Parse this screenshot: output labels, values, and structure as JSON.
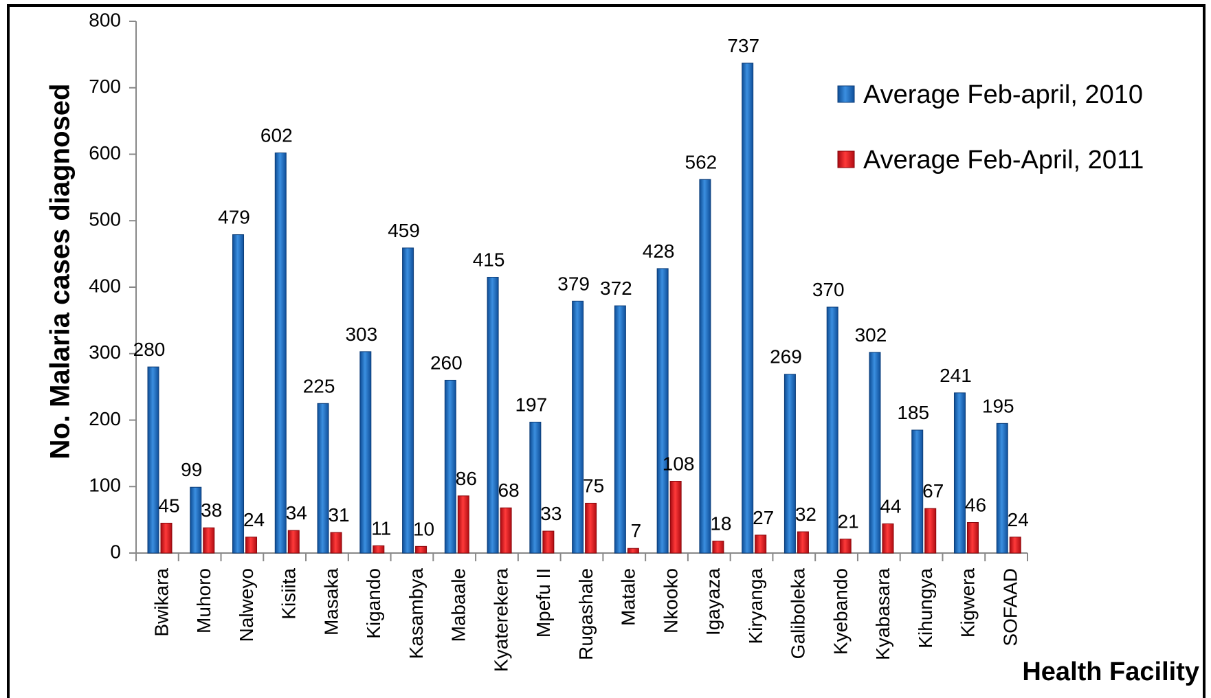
{
  "chart_data": {
    "type": "bar",
    "xlabel": "Health Facility",
    "ylabel": "No. Malaria cases diagnosed",
    "ylim": [
      0,
      800
    ],
    "yticks": [
      0,
      100,
      200,
      300,
      400,
      500,
      600,
      700,
      800
    ],
    "grid": false,
    "legend_position": "top-right",
    "categories": [
      "Bwikara",
      "Muhoro",
      "Nalweyo",
      "Kisiita",
      "Masaka",
      "Kigando",
      "Kasambya",
      "Mabaale",
      "Kyaterekera",
      "Mpefu II",
      "Rugashale",
      "Matale",
      "Nkooko",
      "Igayaza",
      "Kiryanga",
      "Galiboleka",
      "Kyebando",
      "Kyabasara",
      "Kihungya",
      "Kigwera",
      "SOFAAD"
    ],
    "series": [
      {
        "name": "Average Feb-april, 2010",
        "color": "#1f6fc4",
        "values": [
          280,
          99,
          479,
          602,
          225,
          303,
          459,
          260,
          415,
          197,
          379,
          372,
          428,
          562,
          737,
          269,
          370,
          302,
          185,
          241,
          195
        ]
      },
      {
        "name": "Average Feb-April, 2011",
        "color": "#e3101b",
        "values": [
          45,
          38,
          24,
          34,
          31,
          11,
          10,
          86,
          68,
          33,
          75,
          7,
          108,
          18,
          27,
          32,
          21,
          44,
          67,
          46,
          24
        ]
      }
    ]
  }
}
